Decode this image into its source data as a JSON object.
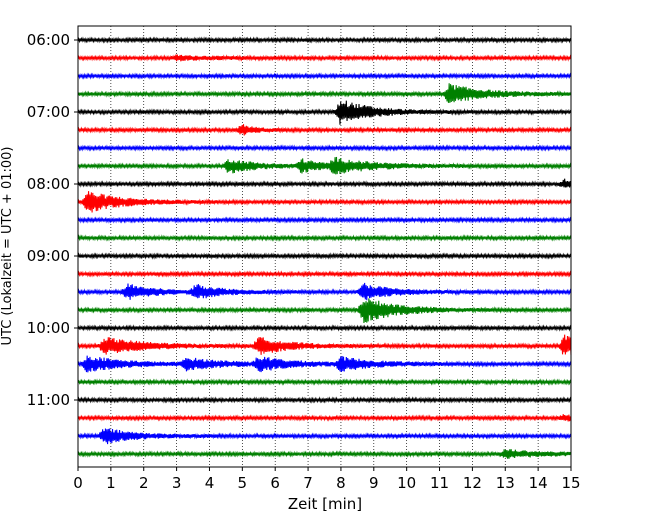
{
  "chart_data": {
    "type": "line",
    "subtype": "helicorder-seismogram",
    "xlabel": "Zeit  [min]",
    "ylabel": "UTC (Lokalzeit = UTC + 01:00)",
    "xlim": [
      0,
      15
    ],
    "x_ticks": [
      0,
      1,
      2,
      3,
      4,
      5,
      6,
      7,
      8,
      9,
      10,
      11,
      12,
      13,
      14,
      15
    ],
    "x_tick_labels": [
      "0",
      "1",
      "2",
      "3",
      "4",
      "5",
      "6",
      "7",
      "8",
      "9",
      "10",
      "11",
      "12",
      "13",
      "14",
      "15"
    ],
    "y_tick_labels": [
      "06:00",
      "07:00",
      "08:00",
      "09:00",
      "10:00",
      "11:00"
    ],
    "grid": "vertical-dotted",
    "line_minutes": 15,
    "colors": [
      "#000000",
      "#ff0000",
      "#0000ff",
      "#008000"
    ],
    "traces": [
      {
        "start": "06:00",
        "events": []
      },
      {
        "start": "06:15",
        "events": [
          {
            "t": 3.0,
            "amp": 0.15,
            "dur": 1.0
          }
        ]
      },
      {
        "start": "06:30",
        "events": []
      },
      {
        "start": "06:45",
        "events": [
          {
            "t": 11.3,
            "amp": 0.7,
            "dur": 1.0
          }
        ]
      },
      {
        "start": "07:00",
        "events": [
          {
            "t": 8.0,
            "amp": 0.9,
            "dur": 0.9
          }
        ]
      },
      {
        "start": "07:15",
        "events": [
          {
            "t": 5.0,
            "amp": 0.35,
            "dur": 0.4
          }
        ]
      },
      {
        "start": "07:30",
        "events": []
      },
      {
        "start": "07:45",
        "events": [
          {
            "t": 4.6,
            "amp": 0.5,
            "dur": 0.8
          },
          {
            "t": 6.8,
            "amp": 0.45,
            "dur": 0.6
          },
          {
            "t": 7.8,
            "amp": 0.5,
            "dur": 1.2
          }
        ]
      },
      {
        "start": "08:00",
        "events": [
          {
            "t": 14.8,
            "amp": 0.3,
            "dur": 0.3
          }
        ]
      },
      {
        "start": "08:15",
        "events": [
          {
            "t": 0.3,
            "amp": 0.75,
            "dur": 1.0
          }
        ]
      },
      {
        "start": "08:30",
        "events": []
      },
      {
        "start": "08:45",
        "events": []
      },
      {
        "start": "09:00",
        "events": []
      },
      {
        "start": "09:15",
        "events": []
      },
      {
        "start": "09:30",
        "events": [
          {
            "t": 1.5,
            "amp": 0.55,
            "dur": 0.8
          },
          {
            "t": 3.6,
            "amp": 0.5,
            "dur": 0.8
          },
          {
            "t": 8.7,
            "amp": 0.6,
            "dur": 0.8
          }
        ]
      },
      {
        "start": "09:45",
        "events": [
          {
            "t": 8.7,
            "amp": 0.9,
            "dur": 1.0
          }
        ]
      },
      {
        "start": "10:00",
        "events": []
      },
      {
        "start": "10:15",
        "events": [
          {
            "t": 0.8,
            "amp": 0.6,
            "dur": 1.2
          },
          {
            "t": 5.5,
            "amp": 0.6,
            "dur": 0.9
          },
          {
            "t": 14.8,
            "amp": 0.75,
            "dur": 0.7
          }
        ]
      },
      {
        "start": "10:30",
        "events": [
          {
            "t": 0.3,
            "amp": 0.6,
            "dur": 1.0
          },
          {
            "t": 3.3,
            "amp": 0.4,
            "dur": 1.2
          },
          {
            "t": 5.5,
            "amp": 0.45,
            "dur": 1.0
          },
          {
            "t": 8.0,
            "amp": 0.45,
            "dur": 1.0
          }
        ]
      },
      {
        "start": "10:45",
        "events": []
      },
      {
        "start": "11:00",
        "events": []
      },
      {
        "start": "11:15",
        "events": [
          {
            "t": 14.8,
            "amp": 0.2,
            "dur": 0.3
          }
        ]
      },
      {
        "start": "11:30",
        "events": [
          {
            "t": 0.8,
            "amp": 0.55,
            "dur": 0.9
          }
        ]
      },
      {
        "start": "11:45",
        "events": [
          {
            "t": 13.0,
            "amp": 0.3,
            "dur": 1.0
          }
        ]
      }
    ]
  }
}
